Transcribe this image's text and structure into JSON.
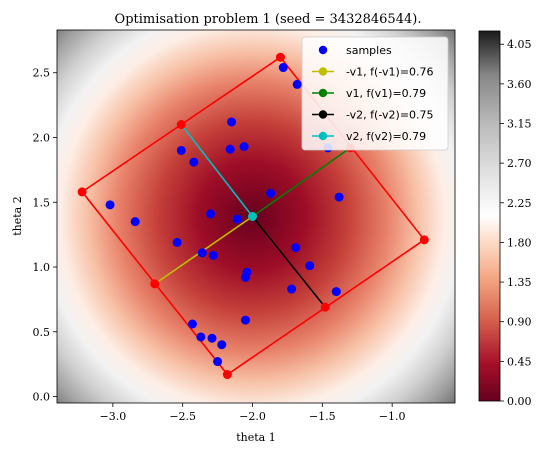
{
  "chart_data": {
    "type": "scatter",
    "title": "Optimisation problem 1 (seed = 3432846544).",
    "xlabel": "theta 1",
    "ylabel": "theta 2",
    "xlim": [
      -3.4,
      -0.55
    ],
    "ylim": [
      -0.05,
      2.83
    ],
    "x_ticks": [
      -3.0,
      -2.5,
      -2.0,
      -1.5,
      -1.0
    ],
    "x_tick_labels": [
      "−3.0",
      "−2.5",
      "−2.0",
      "−1.5",
      "−1.0"
    ],
    "y_ticks": [
      0.0,
      0.5,
      1.0,
      1.5,
      2.0,
      2.5
    ],
    "y_tick_labels": [
      "0.0",
      "0.5",
      "1.0",
      "1.5",
      "2.0",
      "2.5"
    ],
    "background": {
      "type": "heatmap",
      "center": [
        -2.0,
        1.39
      ],
      "colormap": "RdGy",
      "colorbar_range": [
        0.0,
        4.2
      ],
      "colorbar_ticks": [
        "0.00",
        "0.45",
        "0.90",
        "1.35",
        "1.80",
        "2.25",
        "2.70",
        "3.15",
        "3.60",
        "4.05"
      ]
    },
    "samples": {
      "name": "samples",
      "color": "#0000ff",
      "points": [
        [
          -1.78,
          2.54
        ],
        [
          -1.68,
          2.41
        ],
        [
          -2.15,
          2.12
        ],
        [
          -2.51,
          1.9
        ],
        [
          -2.42,
          1.81
        ],
        [
          -2.16,
          1.91
        ],
        [
          -2.06,
          1.93
        ],
        [
          -1.46,
          1.92
        ],
        [
          -1.87,
          1.57
        ],
        [
          -3.02,
          1.48
        ],
        [
          -2.84,
          1.35
        ],
        [
          -2.3,
          1.41
        ],
        [
          -2.11,
          1.37
        ],
        [
          -1.38,
          1.54
        ],
        [
          -2.54,
          1.19
        ],
        [
          -2.36,
          1.11
        ],
        [
          -2.28,
          1.09
        ],
        [
          -1.69,
          1.15
        ],
        [
          -2.04,
          0.96
        ],
        [
          -2.05,
          0.92
        ],
        [
          -1.59,
          1.01
        ],
        [
          -1.72,
          0.83
        ],
        [
          -1.4,
          0.81
        ],
        [
          -2.43,
          0.56
        ],
        [
          -2.37,
          0.46
        ],
        [
          -2.29,
          0.45
        ],
        [
          -2.22,
          0.4
        ],
        [
          -2.05,
          0.59
        ],
        [
          -2.25,
          0.27
        ]
      ]
    },
    "center_point": [
      -2.0,
      1.39
    ],
    "rectangle": {
      "color": "#ff0000",
      "corners": [
        [
          -1.8,
          2.62
        ],
        [
          -0.77,
          1.21
        ],
        [
          -2.18,
          0.17
        ],
        [
          -3.22,
          1.58
        ]
      ],
      "edge_points": [
        [
          -2.51,
          2.1
        ],
        [
          -1.3,
          1.92
        ],
        [
          -1.48,
          0.69
        ],
        [
          -2.7,
          0.87
        ]
      ]
    },
    "vectors": [
      {
        "name": "-v1, f(-v1)=0.76",
        "color": "#bfbf00",
        "end": [
          -2.7,
          0.87
        ]
      },
      {
        "name": "v1, f(v1)=0.79",
        "color": "#008000",
        "end": [
          -1.3,
          1.92
        ]
      },
      {
        "name": "-v2, f(-v2)=0.75",
        "color": "#000000",
        "end": [
          -1.48,
          0.69
        ]
      },
      {
        "name": "v2, f(v2)=0.79",
        "color": "#00bfbf",
        "end": [
          -2.51,
          2.1
        ]
      }
    ],
    "legend": {
      "placement": "top-right",
      "entries": [
        "samples",
        "-v1, f(-v1)=0.76",
        "v1, f(v1)=0.79",
        "-v2, f(-v2)=0.75",
        "v2, f(v2)=0.79"
      ]
    }
  }
}
